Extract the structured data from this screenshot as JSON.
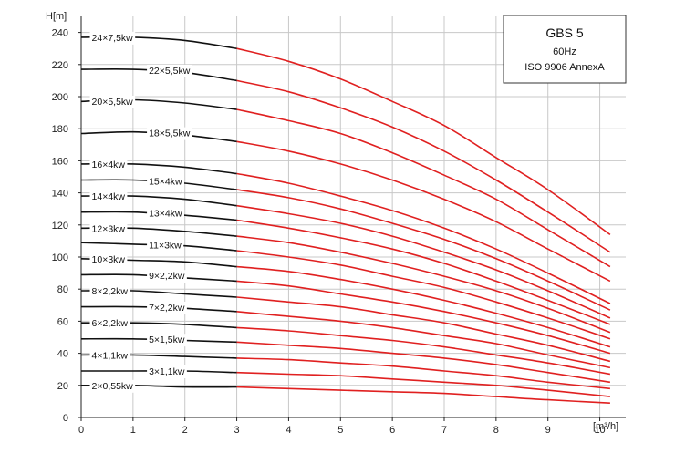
{
  "chart_data": {
    "type": "line",
    "xlabel": "[m³/h]",
    "ylabel": "H[m]",
    "xlim": [
      0,
      10.5
    ],
    "ylim": [
      0,
      250
    ],
    "xticks": [
      "0",
      "1",
      "2",
      "3",
      "4",
      "5",
      "6",
      "7",
      "8",
      "9",
      "10"
    ],
    "yticks": [
      "0",
      "20",
      "40",
      "60",
      "80",
      "100",
      "120",
      "140",
      "160",
      "180",
      "200",
      "220",
      "240"
    ],
    "grid": true,
    "legend": {
      "position": "top-right",
      "lines": [
        "GBS 5",
        "60Hz",
        "ISO 9906 AnnexA"
      ]
    },
    "colors": {
      "outside_range": "#111111",
      "operating_range": "#e02020"
    },
    "operating_range_start": 3,
    "series": [
      {
        "name": "24×7,5kw",
        "points": [
          [
            0,
            237
          ],
          [
            1,
            237
          ],
          [
            2,
            235
          ],
          [
            3,
            230
          ],
          [
            4,
            222
          ],
          [
            5,
            211
          ],
          [
            6,
            197
          ],
          [
            7,
            182
          ],
          [
            8,
            162
          ],
          [
            9,
            142
          ],
          [
            10.2,
            114
          ]
        ]
      },
      {
        "name": "22×5,5kw",
        "points": [
          [
            0,
            217
          ],
          [
            1,
            217
          ],
          [
            2,
            215
          ],
          [
            3,
            210
          ],
          [
            4,
            203
          ],
          [
            5,
            193
          ],
          [
            6,
            181
          ],
          [
            7,
            166
          ],
          [
            8,
            148
          ],
          [
            9,
            128
          ],
          [
            10.2,
            103
          ]
        ]
      },
      {
        "name": "20×5,5kw",
        "points": [
          [
            0,
            197
          ],
          [
            1,
            198
          ],
          [
            2,
            196
          ],
          [
            3,
            192
          ],
          [
            4,
            185
          ],
          [
            5,
            177
          ],
          [
            6,
            165
          ],
          [
            7,
            151
          ],
          [
            8,
            136
          ],
          [
            9,
            117
          ],
          [
            10.2,
            94
          ]
        ]
      },
      {
        "name": "18×5,5kw",
        "points": [
          [
            0,
            177
          ],
          [
            1,
            178
          ],
          [
            2,
            176
          ],
          [
            3,
            172
          ],
          [
            4,
            166
          ],
          [
            5,
            158
          ],
          [
            6,
            148
          ],
          [
            7,
            136
          ],
          [
            8,
            122
          ],
          [
            9,
            105
          ],
          [
            10.2,
            85
          ]
        ]
      },
      {
        "name": "16×4kw",
        "points": [
          [
            0,
            158
          ],
          [
            1,
            158
          ],
          [
            2,
            156
          ],
          [
            3,
            152
          ],
          [
            4,
            146
          ],
          [
            5,
            138
          ],
          [
            6,
            129
          ],
          [
            7,
            118
          ],
          [
            8,
            105
          ],
          [
            9,
            90
          ],
          [
            10.2,
            71
          ]
        ]
      },
      {
        "name": "15×4kw",
        "points": [
          [
            0,
            148
          ],
          [
            1,
            148
          ],
          [
            2,
            146
          ],
          [
            3,
            142
          ],
          [
            4,
            137
          ],
          [
            5,
            130
          ],
          [
            6,
            121
          ],
          [
            7,
            111
          ],
          [
            8,
            99
          ],
          [
            9,
            85
          ],
          [
            10.2,
            67
          ]
        ]
      },
      {
        "name": "14×4kw",
        "points": [
          [
            0,
            138
          ],
          [
            1,
            138
          ],
          [
            2,
            136
          ],
          [
            3,
            132
          ],
          [
            4,
            127
          ],
          [
            5,
            121
          ],
          [
            6,
            113
          ],
          [
            7,
            103
          ],
          [
            8,
            92
          ],
          [
            9,
            79
          ],
          [
            10.2,
            62
          ]
        ]
      },
      {
        "name": "13×4kw",
        "points": [
          [
            0,
            128
          ],
          [
            1,
            128
          ],
          [
            2,
            126
          ],
          [
            3,
            123
          ],
          [
            4,
            118
          ],
          [
            5,
            112
          ],
          [
            6,
            105
          ],
          [
            7,
            96
          ],
          [
            8,
            85
          ],
          [
            9,
            73
          ],
          [
            10.2,
            58
          ]
        ]
      },
      {
        "name": "12×3kw",
        "points": [
          [
            0,
            118
          ],
          [
            1,
            118
          ],
          [
            2,
            116
          ],
          [
            3,
            113
          ],
          [
            4,
            109
          ],
          [
            5,
            103
          ],
          [
            6,
            96
          ],
          [
            7,
            88
          ],
          [
            8,
            79
          ],
          [
            9,
            68
          ],
          [
            10.2,
            53
          ]
        ]
      },
      {
        "name": "11×3kw",
        "points": [
          [
            0,
            109
          ],
          [
            1,
            108
          ],
          [
            2,
            107
          ],
          [
            3,
            104
          ],
          [
            4,
            100
          ],
          [
            5,
            95
          ],
          [
            6,
            88
          ],
          [
            7,
            81
          ],
          [
            8,
            72
          ],
          [
            9,
            62
          ],
          [
            10.2,
            49
          ]
        ]
      },
      {
        "name": "10×3kw",
        "points": [
          [
            0,
            99
          ],
          [
            1,
            98
          ],
          [
            2,
            97
          ],
          [
            3,
            94
          ],
          [
            4,
            91
          ],
          [
            5,
            86
          ],
          [
            6,
            80
          ],
          [
            7,
            73
          ],
          [
            8,
            65
          ],
          [
            9,
            56
          ],
          [
            10.2,
            44
          ]
        ]
      },
      {
        "name": "9×2,2kw",
        "points": [
          [
            0,
            89
          ],
          [
            1,
            89
          ],
          [
            2,
            87
          ],
          [
            3,
            85
          ],
          [
            4,
            82
          ],
          [
            5,
            77
          ],
          [
            6,
            72
          ],
          [
            7,
            66
          ],
          [
            8,
            59
          ],
          [
            9,
            51
          ],
          [
            10.2,
            40
          ]
        ]
      },
      {
        "name": "8×2,2kw",
        "points": [
          [
            0,
            79
          ],
          [
            1,
            79
          ],
          [
            2,
            77
          ],
          [
            3,
            75
          ],
          [
            4,
            72
          ],
          [
            5,
            69
          ],
          [
            6,
            64
          ],
          [
            7,
            59
          ],
          [
            8,
            52
          ],
          [
            9,
            45
          ],
          [
            10.2,
            35
          ]
        ]
      },
      {
        "name": "7×2,2kw",
        "points": [
          [
            0,
            69
          ],
          [
            1,
            69
          ],
          [
            2,
            68
          ],
          [
            3,
            66
          ],
          [
            4,
            63
          ],
          [
            5,
            60
          ],
          [
            6,
            56
          ],
          [
            7,
            51
          ],
          [
            8,
            46
          ],
          [
            9,
            39
          ],
          [
            10.2,
            31
          ]
        ]
      },
      {
        "name": "6×2,2kw",
        "points": [
          [
            0,
            59
          ],
          [
            1,
            59
          ],
          [
            2,
            58
          ],
          [
            3,
            56
          ],
          [
            4,
            54
          ],
          [
            5,
            51
          ],
          [
            6,
            48
          ],
          [
            7,
            44
          ],
          [
            8,
            39
          ],
          [
            9,
            34
          ],
          [
            10.2,
            27
          ]
        ]
      },
      {
        "name": "5×1,5kw",
        "points": [
          [
            0,
            49
          ],
          [
            1,
            49
          ],
          [
            2,
            48
          ],
          [
            3,
            47
          ],
          [
            4,
            45
          ],
          [
            5,
            43
          ],
          [
            6,
            40
          ],
          [
            7,
            37
          ],
          [
            8,
            33
          ],
          [
            9,
            28
          ],
          [
            10.2,
            22
          ]
        ]
      },
      {
        "name": "4×1,1kw",
        "points": [
          [
            0,
            39
          ],
          [
            1,
            39
          ],
          [
            2,
            38
          ],
          [
            3,
            37
          ],
          [
            4,
            36
          ],
          [
            5,
            34
          ],
          [
            6,
            32
          ],
          [
            7,
            29
          ],
          [
            8,
            26
          ],
          [
            9,
            22
          ],
          [
            10.2,
            18
          ]
        ]
      },
      {
        "name": "3×1,1kw",
        "points": [
          [
            0,
            29
          ],
          [
            1,
            29
          ],
          [
            2,
            29
          ],
          [
            3,
            28
          ],
          [
            4,
            27
          ],
          [
            5,
            26
          ],
          [
            6,
            24
          ],
          [
            7,
            22
          ],
          [
            8,
            20
          ],
          [
            9,
            17
          ],
          [
            10.2,
            13
          ]
        ]
      },
      {
        "name": "2×0,55kw",
        "points": [
          [
            0,
            20
          ],
          [
            1,
            20
          ],
          [
            2,
            19
          ],
          [
            3,
            19
          ],
          [
            4,
            18
          ],
          [
            5,
            17
          ],
          [
            6,
            16
          ],
          [
            7,
            15
          ],
          [
            8,
            13
          ],
          [
            9,
            11
          ],
          [
            10.2,
            9
          ]
        ]
      }
    ]
  }
}
